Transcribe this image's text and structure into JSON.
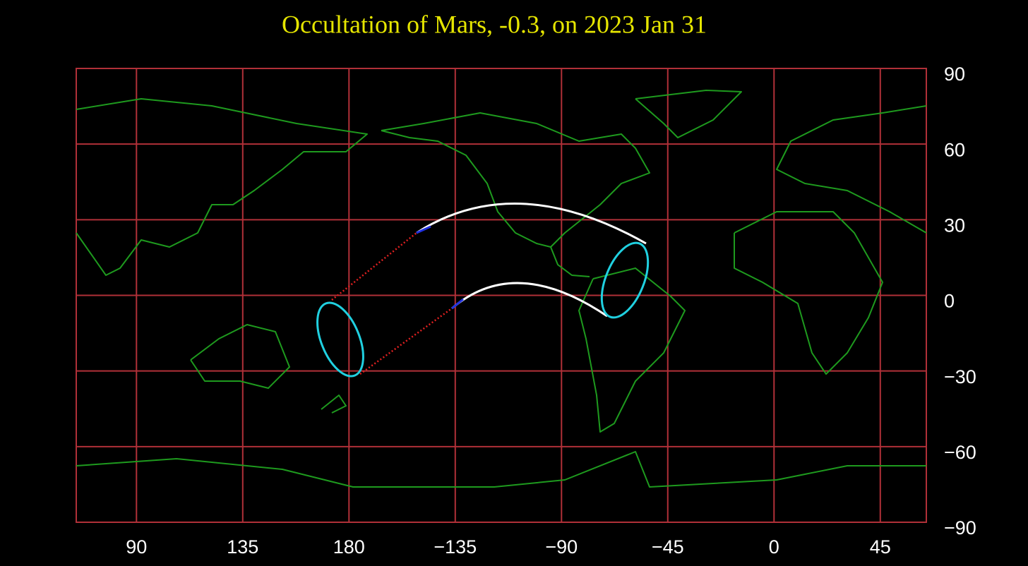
{
  "chart_data": {
    "type": "map",
    "title": "Occultation  of  Mars, -0.3, on 2023 Jan 31",
    "xlim": [
      64.5,
      424.5
    ],
    "xticks": [
      90,
      135,
      180,
      {
        "value": -135,
        "label": "−135"
      },
      {
        "value": -90,
        "label": "−90"
      },
      {
        "value": -45,
        "label": "−45"
      },
      0,
      45
    ],
    "ylim": [
      -90,
      90
    ],
    "yticks": [
      90,
      60,
      30,
      0,
      {
        "value": -30,
        "label": "−30"
      },
      {
        "value": -60,
        "label": "−60"
      },
      {
        "value": -90,
        "label": "−90"
      }
    ],
    "grid": true
  }
}
